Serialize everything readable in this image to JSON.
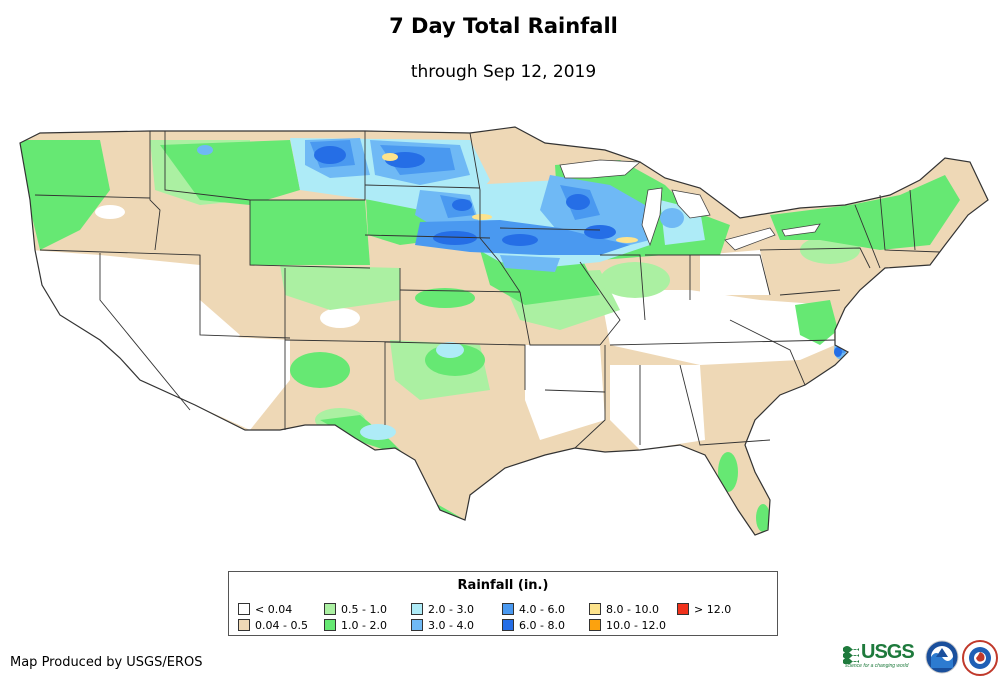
{
  "title": "7 Day Total Rainfall",
  "subtitle": "through Sep 12, 2019",
  "legend": {
    "title": "Rainfall (in.)",
    "items": [
      {
        "label": "< 0.04",
        "color": "#ffffff"
      },
      {
        "label": "0.04 - 0.5",
        "color": "#eed8b6"
      },
      {
        "label": "0.5 - 1.0",
        "color": "#abf0a2"
      },
      {
        "label": "1.0 - 2.0",
        "color": "#66e873"
      },
      {
        "label": "2.0 - 3.0",
        "color": "#aeebf7"
      },
      {
        "label": "3.0 - 4.0",
        "color": "#6fb9f5"
      },
      {
        "label": "4.0 - 6.0",
        "color": "#4a99f0"
      },
      {
        "label": "6.0 - 8.0",
        "color": "#256ee6"
      },
      {
        "label": "8.0 - 10.0",
        "color": "#fde38c"
      },
      {
        "label": "10.0 - 12.0",
        "color": "#fca20e"
      },
      {
        "label": "> 12.0",
        "color": "#f0321c"
      }
    ]
  },
  "credit": "Map Produced by USGS/EROS",
  "logos": {
    "usgs": "USGS",
    "usgs_tagline": "science for a changing world"
  }
}
